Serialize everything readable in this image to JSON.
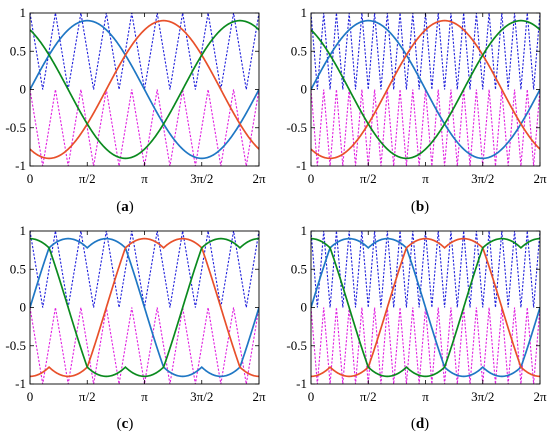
{
  "figure": {
    "captions": [
      "(a)",
      "(b)",
      "(c)",
      "(d)"
    ]
  },
  "colors": {
    "phase_a": "#1f77c4",
    "phase_b": "#e8502a",
    "phase_c": "#0a8a1e",
    "carrier_1": "#1f1fdb",
    "carrier_2": "#e01fe0"
  },
  "chart_data": [
    {
      "type": "line",
      "caption": "(a)",
      "modulation": "sinusoidal",
      "amplitude": 0.9,
      "carrier_cycles": 9,
      "xlim": [
        0,
        6.2832
      ],
      "ylim": [
        -1,
        1
      ],
      "xticks": [
        "0",
        "π/2",
        "π",
        "3π/2",
        "2π"
      ],
      "yticks": [
        "1",
        "0.5",
        "0",
        "-0.5",
        "-1"
      ],
      "carriers": [
        "positive",
        "negative"
      ],
      "series": [
        {
          "phase_deg": 0
        },
        {
          "phase_deg": -120
        },
        {
          "phase_deg": 120
        }
      ]
    },
    {
      "type": "line",
      "caption": "(b)",
      "modulation": "sinusoidal",
      "amplitude": 0.9,
      "carrier_cycles": 18,
      "xlim": [
        0,
        6.2832
      ],
      "ylim": [
        -1,
        1
      ],
      "xticks": [
        "0",
        "π/2",
        "π",
        "3π/2",
        "2π"
      ],
      "yticks": [
        "1",
        "0.5",
        "0",
        "-0.5",
        "-1"
      ],
      "carriers": [
        "positive",
        "negative"
      ],
      "series": [
        {
          "phase_deg": 0
        },
        {
          "phase_deg": -120
        },
        {
          "phase_deg": 120
        }
      ]
    },
    {
      "type": "line",
      "caption": "(c)",
      "modulation": "saddle",
      "amplitude": 0.9,
      "carrier_cycles": 9,
      "xlim": [
        0,
        6.2832
      ],
      "ylim": [
        -1,
        1
      ],
      "xticks": [
        "0",
        "π/2",
        "π",
        "3π/2",
        "2π"
      ],
      "yticks": [
        "1",
        "0.5",
        "0",
        "-0.5",
        "-1"
      ],
      "carriers": [
        "positive",
        "negative"
      ],
      "series": [
        {
          "phase_deg": 0
        },
        {
          "phase_deg": -120
        },
        {
          "phase_deg": 120
        }
      ]
    },
    {
      "type": "line",
      "caption": "(d)",
      "modulation": "saddle",
      "amplitude": 0.9,
      "carrier_cycles": 18,
      "xlim": [
        0,
        6.2832
      ],
      "ylim": [
        -1,
        1
      ],
      "xticks": [
        "0",
        "π/2",
        "π",
        "3π/2",
        "2π"
      ],
      "yticks": [
        "1",
        "0.5",
        "0",
        "-0.5",
        "-1"
      ],
      "carriers": [
        "positive",
        "negative"
      ],
      "series": [
        {
          "phase_deg": 0
        },
        {
          "phase_deg": -120
        },
        {
          "phase_deg": 120
        }
      ]
    }
  ]
}
